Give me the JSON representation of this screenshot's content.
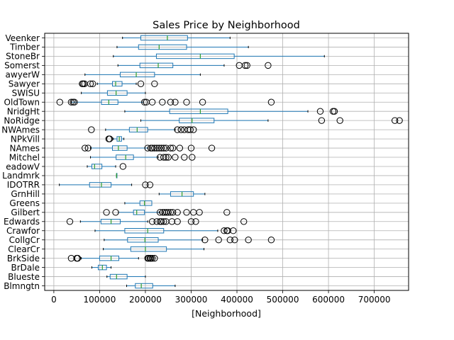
{
  "chart_data": {
    "type": "boxplot",
    "orientation": "horizontal",
    "title": "Sales Price by Neighborhood",
    "xlabel": "[Neighborhood]",
    "xlim": [
      -20000,
      775000
    ],
    "xticks": [
      0,
      100000,
      200000,
      300000,
      400000,
      500000,
      600000,
      700000
    ],
    "xtick_labels": [
      "0",
      "100000",
      "200000",
      "300000",
      "400000",
      "500000",
      "600000",
      "700000"
    ],
    "grid": true,
    "colors": {
      "box": "#1f77b4",
      "median": "#2ca02c",
      "grid": "#b0b0b0",
      "flier": "#000000"
    },
    "categories": [
      "Blmngtn",
      "Blueste",
      "BrDale",
      "BrkSide",
      "ClearCr",
      "CollgCr",
      "Crawfor",
      "Edwards",
      "Gilbert",
      "Greens",
      "GrnHill",
      "IDOTRR",
      "Landmrk",
      "MeadowV",
      "Mitchel",
      "NAmes",
      "NPkVill",
      "NWAmes",
      "NoRidge",
      "NridgHt",
      "OldTown",
      "SWISU",
      "Sawyer",
      "SawyerW",
      "Somerst",
      "StoneBr",
      "Timber",
      "Veenker"
    ],
    "tick_labels": [
      "Blmngtn",
      "Blueste",
      "BrDale",
      "BrkSide",
      "ClearCr",
      "CollgCr",
      "Crawfor",
      "Edwards",
      "Gilbert",
      "Greens",
      "GrnHill",
      "IDOTRR",
      "Landmrk",
      "eadowV",
      "Mitchel",
      "NAmes",
      "NPkVill",
      "NWAmes",
      "NoRidge",
      "NridgHt",
      "OldTown",
      "SWISU",
      "Sawyer",
      "awyerW",
      "Somerst",
      "StoneBr",
      "Timber",
      "Veenker"
    ],
    "boxes": [
      {
        "name": "Blmngtn",
        "whislo": 159000,
        "q1": 178000,
        "med": 191000,
        "q3": 216000,
        "whishi": 265000,
        "fliers": []
      },
      {
        "name": "Blueste",
        "whislo": 116000,
        "q1": 123000,
        "med": 137000,
        "q3": 160000,
        "whishi": 200000,
        "fliers": []
      },
      {
        "name": "BrDale",
        "whislo": 83000,
        "q1": 97000,
        "med": 106000,
        "q3": 115000,
        "whishi": 125000,
        "fliers": []
      },
      {
        "name": "BrkSide",
        "whislo": 60000,
        "q1": 100000,
        "med": 125000,
        "q3": 142000,
        "whishi": 185000,
        "fliers": [
          38000,
          50000,
          52000,
          205000,
          207000,
          210000,
          212000,
          215000,
          220000
        ]
      },
      {
        "name": "ClearCr",
        "whislo": 108000,
        "q1": 168000,
        "med": 200000,
        "q3": 246000,
        "whishi": 328000,
        "fliers": []
      },
      {
        "name": "CollgCr",
        "whislo": 110000,
        "q1": 161000,
        "med": 199000,
        "q3": 228000,
        "whishi": 325000,
        "fliers": [
          330000,
          360000,
          385000,
          395000,
          425000,
          475000
        ]
      },
      {
        "name": "Crawfor",
        "whislo": 90000,
        "q1": 155000,
        "med": 205000,
        "q3": 240000,
        "whishi": 358000,
        "fliers": [
          372000,
          378000,
          380000,
          392000
        ]
      },
      {
        "name": "Edwards",
        "whislo": 58000,
        "q1": 103000,
        "med": 125000,
        "q3": 145000,
        "whishi": 205000,
        "fliers": [
          35000,
          215000,
          225000,
          232000,
          235000,
          240000,
          245000,
          258000,
          270000,
          300000,
          310000,
          415000
        ]
      },
      {
        "name": "Gilbert",
        "whislo": 141000,
        "q1": 174000,
        "med": 181000,
        "q3": 198000,
        "whishi": 230000,
        "fliers": [
          115000,
          135000,
          232000,
          238000,
          242000,
          246000,
          250000,
          255000,
          260000,
          270000,
          290000,
          305000,
          318000,
          378000
        ]
      },
      {
        "name": "Greens",
        "whislo": 155000,
        "q1": 188000,
        "med": 198000,
        "q3": 214000,
        "whishi": 214000,
        "fliers": []
      },
      {
        "name": "GrnHill",
        "whislo": 230000,
        "q1": 255000,
        "med": 280000,
        "q3": 305000,
        "whishi": 330000,
        "fliers": []
      },
      {
        "name": "IDOTRR",
        "whislo": 12000,
        "q1": 78000,
        "med": 104000,
        "q3": 125000,
        "whishi": 170000,
        "fliers": [
          200000,
          210000
        ]
      },
      {
        "name": "Landmrk",
        "whislo": 137000,
        "q1": 137000,
        "med": 137000,
        "q3": 137000,
        "whishi": 137000,
        "fliers": []
      },
      {
        "name": "MeadowV",
        "whislo": 73000,
        "q1": 83000,
        "med": 89000,
        "q3": 105000,
        "whishi": 135000,
        "fliers": [
          151000
        ]
      },
      {
        "name": "Mitchel",
        "whislo": 80000,
        "q1": 136000,
        "med": 157000,
        "q3": 174000,
        "whishi": 228000,
        "fliers": [
          232000,
          240000,
          245000,
          250000,
          265000,
          285000,
          302000
        ]
      },
      {
        "name": "NAmes",
        "whislo": 80000,
        "q1": 128000,
        "med": 141000,
        "q3": 160000,
        "whishi": 205000,
        "fliers": [
          68000,
          75000,
          205000,
          212000,
          215000,
          220000,
          225000,
          230000,
          235000,
          240000,
          245000,
          255000,
          260000,
          275000,
          300000,
          345000
        ]
      },
      {
        "name": "NPkVill",
        "whislo": 130000,
        "q1": 138000,
        "med": 143000,
        "q3": 148000,
        "whishi": 153000,
        "fliers": [
          120000,
          122000
        ]
      },
      {
        "name": "NWAmes",
        "whislo": 113000,
        "q1": 165000,
        "med": 182000,
        "q3": 205000,
        "whishi": 265000,
        "fliers": [
          82000,
          270000,
          278000,
          285000,
          293000,
          298000,
          305000
        ]
      },
      {
        "name": "NoRidge",
        "whislo": 190000,
        "q1": 274000,
        "med": 302000,
        "q3": 350000,
        "whishi": 468000,
        "fliers": [
          585000,
          625000,
          745000,
          755000
        ]
      },
      {
        "name": "NridgHt",
        "whislo": 155000,
        "q1": 253000,
        "med": 320000,
        "q3": 380000,
        "whishi": 555000,
        "fliers": [
          582000,
          610000,
          613000
        ]
      },
      {
        "name": "OldTown",
        "whislo": 38000,
        "q1": 104000,
        "med": 120000,
        "q3": 140000,
        "whishi": 195000,
        "fliers": [
          13000,
          38000,
          42000,
          45000,
          198000,
          202000,
          215000,
          237000,
          255000,
          265000,
          290000,
          325000,
          475000
        ]
      },
      {
        "name": "SWISU",
        "whislo": 60000,
        "q1": 117000,
        "med": 136000,
        "q3": 160000,
        "whishi": 200000,
        "fliers": []
      },
      {
        "name": "Sawyer",
        "whislo": 95000,
        "q1": 128000,
        "med": 135000,
        "q3": 149000,
        "whishi": 180000,
        "fliers": [
          62000,
          64000,
          67000,
          80000,
          85000,
          190000,
          220000
        ]
      },
      {
        "name": "SawyerW",
        "whislo": 68000,
        "q1": 145000,
        "med": 180000,
        "q3": 220000,
        "whishi": 320000,
        "fliers": []
      },
      {
        "name": "Somerst",
        "whislo": 140000,
        "q1": 188000,
        "med": 228000,
        "q3": 260000,
        "whishi": 372000,
        "fliers": [
          405000,
          418000,
          422000,
          468000
        ]
      },
      {
        "name": "StoneBr",
        "whislo": 130000,
        "q1": 224000,
        "med": 320000,
        "q3": 394000,
        "whishi": 591000,
        "fliers": []
      },
      {
        "name": "Timber",
        "whislo": 138000,
        "q1": 185000,
        "med": 230000,
        "q3": 290000,
        "whishi": 425000,
        "fliers": []
      },
      {
        "name": "Veenker",
        "whislo": 150000,
        "q1": 190000,
        "med": 248000,
        "q3": 292000,
        "whishi": 385000,
        "fliers": []
      }
    ]
  }
}
